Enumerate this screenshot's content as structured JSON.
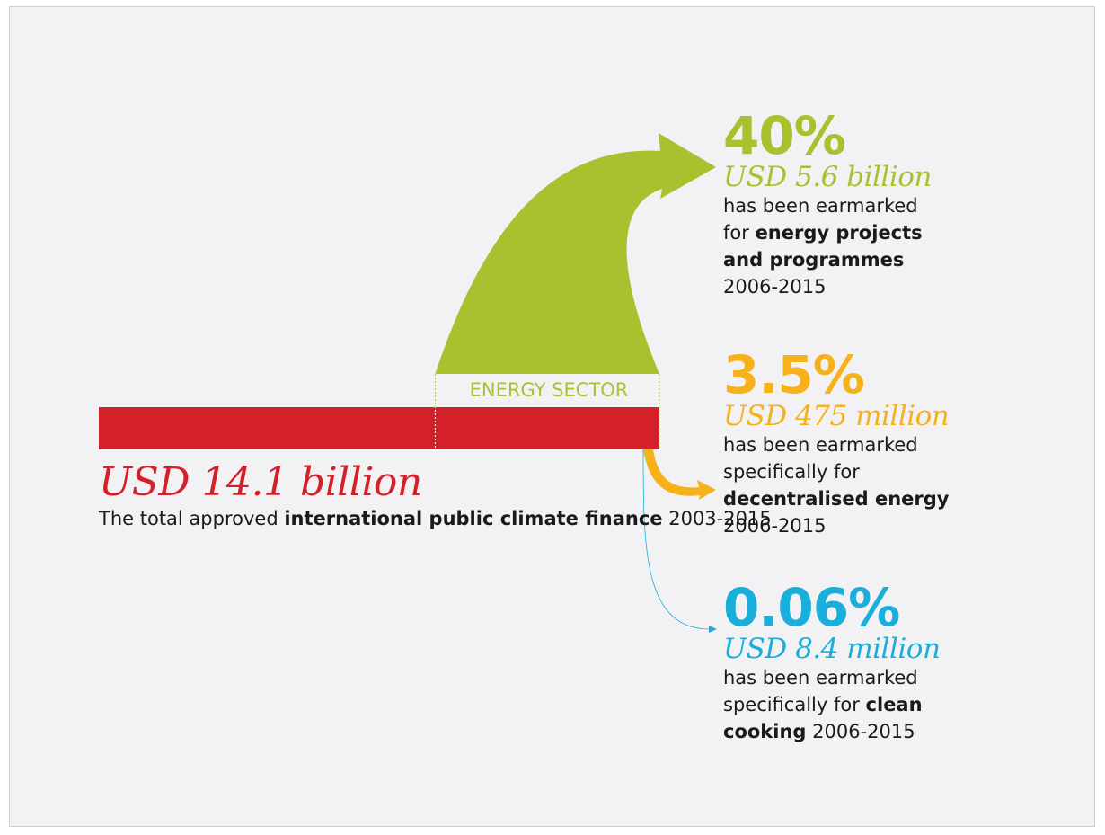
{
  "colors": {
    "background": "#f2f2f4",
    "total": "#d42029",
    "energy": "#a8c12f",
    "decentralised": "#f6b11b",
    "clean_cooking": "#1aaedb",
    "text": "#1a1a1a"
  },
  "chart_data": {
    "type": "sankey",
    "source": {
      "amount": "USD 14.1 billion",
      "value_usd_billion": 14.1,
      "desc_pre": "The total approved ",
      "desc_bold": "international public climate finance",
      "desc_post": " 2003-2015"
    },
    "sector_label": "ENERGY SECTOR",
    "flows": [
      {
        "id": "energy",
        "percent": "40%",
        "share": 0.4,
        "amount": "USD 5.6 billion",
        "value_usd_billion": 5.6,
        "desc": {
          "l1": "has been earmarked",
          "l2_pre": "for ",
          "l2_bold": "energy projects",
          "l3_bold": "and programmes",
          "l4": "2006-2015"
        }
      },
      {
        "id": "decentralised",
        "percent": "3.5%",
        "share": 0.035,
        "amount": "USD 475 million",
        "value_usd_billion": 0.475,
        "desc": {
          "l1": "has been earmarked",
          "l2": "specifically for",
          "l3_bold": "decentralised energy",
          "l4": "2006-2015"
        }
      },
      {
        "id": "clean_cooking",
        "percent": "0.06%",
        "share": 0.0006,
        "amount": "USD 8.4 million",
        "value_usd_billion": 0.0084,
        "desc": {
          "l1": "has been earmarked",
          "l2_pre": "specifically for ",
          "l2_bold": "clean",
          "l3_bold": "cooking",
          "l3_post": " 2006-2015"
        }
      }
    ]
  }
}
